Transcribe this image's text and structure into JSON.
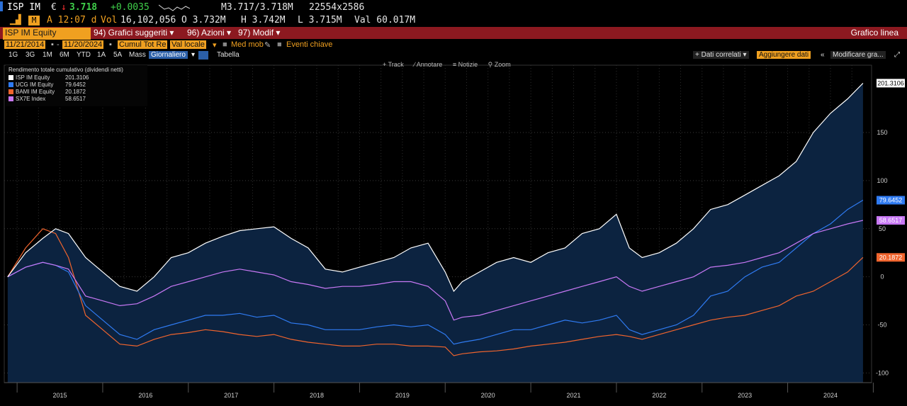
{
  "quote": {
    "ticker": "ISP IM",
    "currency": "€",
    "arrow": "↓",
    "last": "3.718",
    "change": "+0.0035",
    "bid_ask": "M3.717/3.718M",
    "size": "22554x2586",
    "icon": "market-status-icon",
    "time_label": "A 12:07 d",
    "vol_label": "Vol",
    "vol": "16,102,056",
    "open": "O 3.732M",
    "high": "H 3.742M",
    "low": "L 3.715M",
    "val": "Val 60.017M"
  },
  "toolbar": {
    "security": "ISP IM Equity",
    "menu1": "94) Grafici suggeriti ▾",
    "menu2": "96) Azioni ▾",
    "menu3": "97) Modif ▾",
    "right_title": "Grafico linea"
  },
  "controls": {
    "start_date": "11/21/2014",
    "end_date": "11/20/2024",
    "mode": "Cumul Tot Re",
    "currency": "Val locale",
    "moving_avg": "Med mob",
    "events": "Eventi chiave"
  },
  "periods": [
    "1G",
    "3G",
    "1M",
    "6M",
    "YTD",
    "1A",
    "5A",
    "Mass"
  ],
  "period_selected": "Giornaliero",
  "table_label": "Tabella",
  "right_actions": {
    "related": "+ Dati correlati ▾",
    "add_data": "Aggiungere dati",
    "modify": "Modificare gra..."
  },
  "tools": [
    "+ Track",
    "∕ Annotare",
    "≡ Notizie",
    "⚲ Zoom"
  ],
  "chart_data": {
    "type": "line",
    "title": "Rendimento totale cumulativo (dividendi netti)",
    "x": [
      2014.89,
      2015.1,
      2015.3,
      2015.45,
      2015.6,
      2015.8,
      2016.0,
      2016.2,
      2016.4,
      2016.6,
      2016.8,
      2017.0,
      2017.2,
      2017.4,
      2017.6,
      2017.8,
      2018.0,
      2018.2,
      2018.4,
      2018.6,
      2018.8,
      2019.0,
      2019.2,
      2019.4,
      2019.6,
      2019.8,
      2020.0,
      2020.1,
      2020.2,
      2020.4,
      2020.6,
      2020.8,
      2021.0,
      2021.2,
      2021.4,
      2021.6,
      2021.8,
      2022.0,
      2022.15,
      2022.3,
      2022.5,
      2022.7,
      2022.9,
      2023.1,
      2023.3,
      2023.5,
      2023.7,
      2023.9,
      2024.1,
      2024.3,
      2024.5,
      2024.7,
      2024.88
    ],
    "series": [
      {
        "name": "ISP IM Equity",
        "value_label": "201.3106",
        "color": "#ffffff",
        "values": [
          0,
          25,
          40,
          50,
          45,
          20,
          5,
          -10,
          -15,
          0,
          20,
          25,
          35,
          42,
          48,
          50,
          52,
          40,
          30,
          8,
          5,
          10,
          15,
          20,
          30,
          35,
          5,
          -15,
          -5,
          5,
          15,
          20,
          15,
          25,
          30,
          45,
          50,
          65,
          30,
          20,
          25,
          35,
          50,
          70,
          75,
          85,
          95,
          105,
          120,
          150,
          170,
          185,
          201.3106
        ]
      },
      {
        "name": "UCG IM Equity",
        "value_label": "79.6452",
        "color": "#2f7bf2",
        "values": [
          0,
          10,
          15,
          12,
          5,
          -30,
          -45,
          -60,
          -65,
          -55,
          -50,
          -45,
          -40,
          -40,
          -38,
          -42,
          -40,
          -48,
          -50,
          -55,
          -55,
          -55,
          -52,
          -50,
          -52,
          -50,
          -60,
          -70,
          -68,
          -65,
          -60,
          -55,
          -55,
          -50,
          -45,
          -48,
          -45,
          -40,
          -55,
          -60,
          -55,
          -50,
          -40,
          -20,
          -15,
          0,
          10,
          15,
          30,
          45,
          55,
          70,
          79.6452
        ]
      },
      {
        "name": "BAMI IM Equity",
        "value_label": "20.1872",
        "color": "#f0642d",
        "values": [
          0,
          30,
          50,
          45,
          20,
          -40,
          -55,
          -70,
          -72,
          -65,
          -60,
          -58,
          -55,
          -57,
          -60,
          -62,
          -60,
          -65,
          -68,
          -70,
          -72,
          -72,
          -70,
          -70,
          -72,
          -72,
          -73,
          -82,
          -80,
          -78,
          -77,
          -75,
          -72,
          -70,
          -68,
          -65,
          -62,
          -60,
          -62,
          -65,
          -60,
          -55,
          -50,
          -45,
          -42,
          -40,
          -35,
          -30,
          -20,
          -15,
          -5,
          5,
          20.1872
        ]
      },
      {
        "name": "SX7E Index",
        "value_label": "58.6517",
        "color": "#c878f5",
        "values": [
          0,
          10,
          15,
          12,
          8,
          -20,
          -25,
          -30,
          -28,
          -20,
          -10,
          -5,
          0,
          5,
          8,
          5,
          2,
          -5,
          -8,
          -12,
          -10,
          -10,
          -8,
          -5,
          -5,
          -10,
          -25,
          -45,
          -42,
          -40,
          -35,
          -30,
          -25,
          -20,
          -15,
          -10,
          -5,
          0,
          -10,
          -15,
          -10,
          -5,
          0,
          10,
          12,
          15,
          20,
          25,
          35,
          45,
          50,
          55,
          58.6517
        ]
      }
    ],
    "x_ticks": [
      2015,
      2016,
      2017,
      2018,
      2019,
      2020,
      2021,
      2022,
      2023,
      2024
    ],
    "y_ticks": [
      -100,
      -50,
      0,
      50,
      100,
      150
    ],
    "ylim": [
      -110,
      220
    ],
    "xlim": [
      2014.85,
      2024.98
    ],
    "grid": true,
    "legend": "top-left"
  }
}
